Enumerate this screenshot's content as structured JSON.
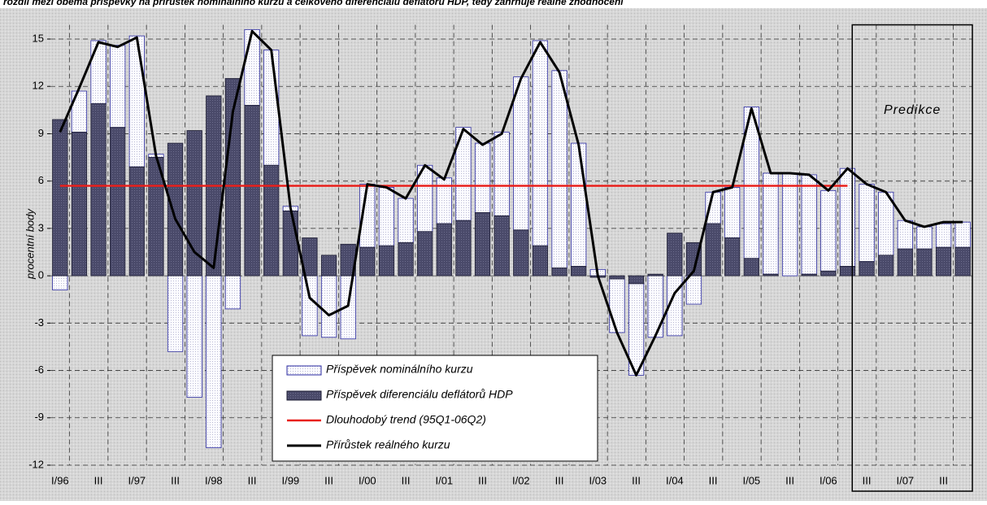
{
  "chart_data": {
    "type": "bar",
    "subtitle": "rozdíl mezi oběma příspěvky na přírůstek nominálního kurzu a celkového diferenciálu deflátorů HDP, tedy zahrnuje reálné zhodnocení",
    "ylabel": "procentní body",
    "annotation": "Predikce",
    "categories": [
      "I/96",
      null,
      "III",
      null,
      "I/97",
      null,
      "III",
      null,
      "I/98",
      null,
      "III",
      null,
      "I/99",
      null,
      "III",
      null,
      "I/00",
      null,
      "III",
      null,
      "I/01",
      null,
      "III",
      null,
      "I/02",
      null,
      "III",
      null,
      "I/03",
      null,
      "III",
      null,
      "I/04",
      null,
      "III",
      null,
      "I/05",
      null,
      "III",
      null,
      "I/06",
      null,
      "III",
      null,
      "I/07",
      null,
      "III",
      null
    ],
    "series": [
      {
        "name": "Příspěvek nominálního kurzu",
        "type": "bar",
        "color": "#ffffff",
        "edge": "#2a2aa0",
        "values": [
          -0.9,
          2.6,
          4.0,
          5.2,
          8.3,
          0.2,
          -4.8,
          -7.7,
          -10.9,
          -2.1,
          4.8,
          7.3,
          0.3,
          -3.8,
          -3.9,
          -4.0,
          4.0,
          3.7,
          2.8,
          4.2,
          2.9,
          5.9,
          4.4,
          5.3,
          9.7,
          13.0,
          12.5,
          7.8,
          0.4,
          -3.4,
          -5.8,
          -3.9,
          -3.8,
          -1.8,
          2.0,
          3.2,
          9.6,
          6.4,
          6.5,
          6.3,
          5.1,
          6.2,
          4.9,
          4.0,
          1.8,
          1.4,
          1.5,
          1.6
        ]
      },
      {
        "name": "Příspěvek diferenciálu deflátorů HDP",
        "type": "bar",
        "color": "#4a4a6a",
        "edge": "#1a1a30",
        "values": [
          9.9,
          9.1,
          10.9,
          9.4,
          6.9,
          7.5,
          8.4,
          9.2,
          11.4,
          12.5,
          10.8,
          7.0,
          4.1,
          2.4,
          1.3,
          2.0,
          1.8,
          1.9,
          2.1,
          2.8,
          3.3,
          3.5,
          4.0,
          3.8,
          2.9,
          1.9,
          0.5,
          0.6,
          -0.1,
          -0.2,
          -0.5,
          0.1,
          2.7,
          2.1,
          3.3,
          2.4,
          1.1,
          0.1,
          0.0,
          0.1,
          0.3,
          0.6,
          0.9,
          1.3,
          1.7,
          1.7,
          1.8,
          1.8
        ]
      },
      {
        "name": "Dlouhodobý trend (95Q1-06Q2)",
        "type": "line",
        "color": "#e8201c",
        "values": [
          5.7,
          5.7,
          5.7,
          5.7,
          5.7,
          5.7,
          5.7,
          5.7,
          5.7,
          5.7,
          5.7,
          5.7,
          5.7,
          5.7,
          5.7,
          5.7,
          5.7,
          5.7,
          5.7,
          5.7,
          5.7,
          5.7,
          5.7,
          5.7,
          5.7,
          5.7,
          5.7,
          5.7,
          5.7,
          5.7,
          5.7,
          5.7,
          5.7,
          5.7,
          5.7,
          5.7,
          5.7,
          5.7,
          5.7,
          5.7,
          5.7,
          5.7,
          null,
          null,
          null,
          null,
          null,
          null
        ]
      },
      {
        "name": "Přírůstek reálného kurzu",
        "type": "line",
        "color": "#000000",
        "values": [
          9.1,
          11.9,
          14.8,
          14.5,
          15.1,
          7.6,
          3.6,
          1.5,
          0.5,
          10.4,
          15.5,
          14.3,
          4.3,
          -1.4,
          -2.5,
          -1.9,
          5.8,
          5.6,
          4.9,
          7.0,
          6.1,
          9.3,
          8.3,
          9.0,
          12.5,
          14.8,
          12.9,
          8.3,
          0.0,
          -3.6,
          -6.3,
          -3.8,
          -1.1,
          0.3,
          5.3,
          5.6,
          10.6,
          6.5,
          6.5,
          6.4,
          5.4,
          6.8,
          5.8,
          5.3,
          3.5,
          3.1,
          3.4,
          3.4
        ]
      }
    ],
    "ylim": [
      -12,
      15.9
    ],
    "yticks": [
      -12,
      -9,
      -6,
      -3,
      0,
      3,
      6,
      9,
      12,
      15
    ],
    "grid": true
  }
}
